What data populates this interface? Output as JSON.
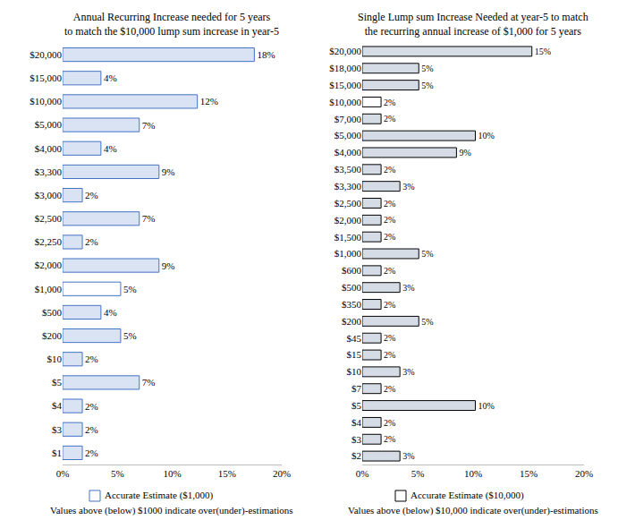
{
  "chart_data": [
    {
      "type": "bar",
      "orientation": "horizontal",
      "title": "Annual Recurring Increase needed for 5 years\nto match the $10,000 lump sum increase in year-5",
      "categories": [
        "$20,000",
        "$15,000",
        "$10,000",
        "$5,000",
        "$4,000",
        "$3,300",
        "$3,000",
        "$2,500",
        "$2,250",
        "$2,000",
        "$1,000",
        "$500",
        "$200",
        "$10",
        "$5",
        "$4",
        "$3",
        "$1"
      ],
      "values": [
        17.5,
        3.5,
        12.3,
        7.0,
        3.5,
        8.8,
        1.8,
        7.0,
        1.8,
        8.8,
        5.3,
        3.5,
        5.3,
        1.8,
        7.0,
        1.8,
        1.8,
        1.8
      ],
      "value_labels": [
        "18%",
        "4%",
        "12%",
        "7%",
        "4%",
        "9%",
        "2%",
        "7%",
        "2%",
        "9%",
        "5%",
        "4%",
        "5%",
        "2%",
        "7%",
        "2%",
        "2%",
        "2%"
      ],
      "colors": [
        "#dae3f3",
        "#dae3f3",
        "#dae3f3",
        "#dae3f3",
        "#dae3f3",
        "#dae3f3",
        "#dae3f3",
        "#dae3f3",
        "#dae3f3",
        "#dae3f3",
        "#ffffff",
        "#dae3f3",
        "#dae3f3",
        "#dae3f3",
        "#dae3f3",
        "#dae3f3",
        "#dae3f3",
        "#dae3f3"
      ],
      "xlim": [
        0,
        20
      ],
      "xticks": [
        {
          "value": 0,
          "label": "0%"
        },
        {
          "value": 5,
          "label": "5%"
        },
        {
          "value": 10,
          "label": "10%"
        },
        {
          "value": 15,
          "label": "15%"
        },
        {
          "value": 20,
          "label": "20%"
        }
      ],
      "grid": false,
      "data_labels": true,
      "annotations": [
        "Accurate Estimate ($1,000)",
        "Values above (below) $1000 indicate over(under)-estimations"
      ]
    },
    {
      "type": "bar",
      "orientation": "horizontal",
      "title": "Single Lump sum Increase Needed at year-5 to match\nthe recurring annual increase of $1,000 for 5 years",
      "categories": [
        "$20,000",
        "$18,000",
        "$15,000",
        "$10,000",
        "$7,000",
        "$5,000",
        "$4,000",
        "$3,500",
        "$3,300",
        "$2,500",
        "$2,000",
        "$1,500",
        "$1,000",
        "$600",
        "$500",
        "$350",
        "$200",
        "$45",
        "$15",
        "$10",
        "$7",
        "$5",
        "$4",
        "$3",
        "$2"
      ],
      "values": [
        15.3,
        5.1,
        5.1,
        1.7,
        1.7,
        10.2,
        8.5,
        1.7,
        3.4,
        1.7,
        1.7,
        1.7,
        5.1,
        1.7,
        3.4,
        1.7,
        5.1,
        1.7,
        1.7,
        3.4,
        1.7,
        10.2,
        1.7,
        1.7,
        3.4
      ],
      "value_labels": [
        "15%",
        "5%",
        "5%",
        "2%",
        "2%",
        "10%",
        "9%",
        "2%",
        "3%",
        "2%",
        "2%",
        "2%",
        "5%",
        "2%",
        "3%",
        "2%",
        "5%",
        "2%",
        "2%",
        "3%",
        "2%",
        "10%",
        "2%",
        "2%",
        "3%"
      ],
      "colors": [
        "#d6dce5",
        "#d6dce5",
        "#d6dce5",
        "#ffffff",
        "#d6dce5",
        "#d6dce5",
        "#d6dce5",
        "#d6dce5",
        "#d6dce5",
        "#d6dce5",
        "#d6dce5",
        "#d6dce5",
        "#d6dce5",
        "#d6dce5",
        "#d6dce5",
        "#d6dce5",
        "#d6dce5",
        "#d6dce5",
        "#d6dce5",
        "#d6dce5",
        "#d6dce5",
        "#d6dce5",
        "#d6dce5",
        "#d6dce5",
        "#d6dce5"
      ],
      "xlim": [
        0,
        20
      ],
      "xticks": [
        {
          "value": 0,
          "label": "0%"
        },
        {
          "value": 5,
          "label": "5%"
        },
        {
          "value": 10,
          "label": "10%"
        },
        {
          "value": 15,
          "label": "15%"
        },
        {
          "value": 20,
          "label": "20%"
        }
      ],
      "grid": false,
      "data_labels": true,
      "annotations": [
        "Accurate Estimate ($10,000)",
        "Values above (below) $10,000 indicate over(under)-estimations"
      ]
    }
  ]
}
